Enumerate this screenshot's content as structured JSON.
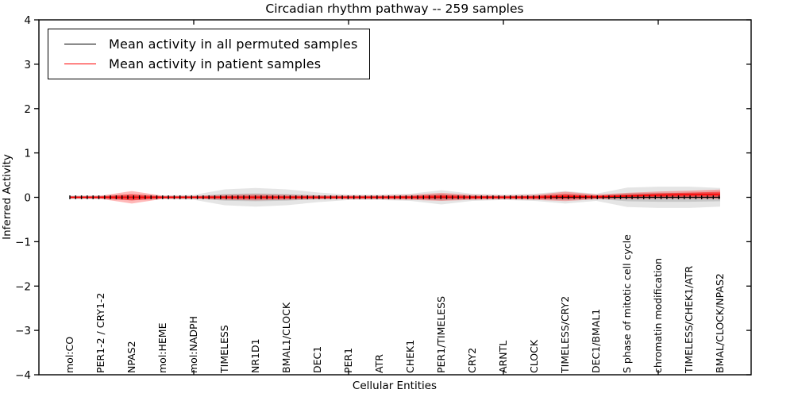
{
  "title": "Circadian rhythm pathway -- 259 samples",
  "chart_data": {
    "type": "area",
    "title": "Circadian rhythm pathway -- 259 samples",
    "xlabel": "Cellular Entities",
    "ylabel": "Inferred Activity",
    "ylim": [
      -4,
      4
    ],
    "xlim": [
      0,
      23
    ],
    "grid": false,
    "ytick_labels_top_to_bottom": [
      "4",
      "3",
      "2",
      "1",
      "0",
      "−1",
      "−2",
      "−3",
      "−4"
    ],
    "ytick_values_top_to_bottom": [
      4,
      3,
      2,
      1,
      0,
      -1,
      -2,
      -3,
      -4
    ],
    "xticks_major_positions": [
      5,
      10,
      15,
      20
    ],
    "legend_position": "upper left",
    "legend": [
      {
        "label": "Mean activity in all permuted samples",
        "color": "#000000"
      },
      {
        "label": "Mean activity in patient samples",
        "color": "#ff0000"
      }
    ],
    "categories": [
      "mol:CO",
      "PER1-2 / CRY1-2",
      "NPAS2",
      "mol:HEME",
      "mol:NADPH",
      "TIMELESS",
      "NR1D1",
      "BMAL1/CLOCK",
      "DEC1",
      "PER1",
      "ATR",
      "CHEK1",
      "PER1/TIMELESS",
      "CRY2",
      "ARNTL",
      "CLOCK",
      "TIMELESS/CRY2",
      "DEC1/BMAL1",
      "S phase of mitotic cell cycle",
      "chromatin modification",
      "TIMELESS/CHEK1/ATR",
      "BMAL/CLOCK/NPAS2"
    ],
    "series": [
      {
        "name": "Mean activity in all permuted samples",
        "color": "#000000",
        "values": [
          0,
          0,
          0,
          0,
          0,
          0,
          0,
          0,
          0,
          0,
          0,
          0,
          0,
          0,
          0,
          0,
          0,
          0,
          0,
          0,
          0,
          0
        ]
      },
      {
        "name": "Mean activity in patient samples",
        "color": "#ff0000",
        "values": [
          0,
          0,
          0,
          0,
          0,
          0,
          0,
          0,
          0,
          0,
          0,
          0,
          0.01,
          0,
          0,
          0,
          0.02,
          0.01,
          0.03,
          0.05,
          0.06,
          0.07
        ]
      }
    ],
    "bands": [
      {
        "name": "permuted-spread-outer",
        "center_series": 0,
        "fill": "rgba(0,0,0,0.10)",
        "half_widths": [
          0.04,
          0.045,
          0.07,
          0.045,
          0.055,
          0.18,
          0.21,
          0.18,
          0.11,
          0.06,
          0.06,
          0.08,
          0.16,
          0.08,
          0.06,
          0.08,
          0.14,
          0.08,
          0.22,
          0.24,
          0.24,
          0.21
        ]
      },
      {
        "name": "permuted-spread-inner",
        "center_series": 0,
        "fill": "rgba(0,0,0,0.13)",
        "half_widths": [
          0.02,
          0.02,
          0.03,
          0.02,
          0.025,
          0.075,
          0.09,
          0.075,
          0.045,
          0.025,
          0.025,
          0.035,
          0.07,
          0.035,
          0.025,
          0.035,
          0.06,
          0.035,
          0.09,
          0.1,
          0.1,
          0.09
        ]
      },
      {
        "name": "patient-spread-outer",
        "center_series": 1,
        "fill": "rgba(255,0,0,0.28)",
        "half_widths": [
          0.03,
          0.035,
          0.14,
          0.035,
          0.035,
          0.055,
          0.07,
          0.055,
          0.045,
          0.045,
          0.045,
          0.055,
          0.09,
          0.055,
          0.045,
          0.055,
          0.105,
          0.055,
          0.07,
          0.08,
          0.09,
          0.105
        ]
      },
      {
        "name": "patient-spread-inner",
        "center_series": 1,
        "fill": "rgba(255,0,0,0.50)",
        "half_widths": [
          0.015,
          0.02,
          0.07,
          0.02,
          0.02,
          0.03,
          0.035,
          0.03,
          0.022,
          0.022,
          0.022,
          0.03,
          0.045,
          0.03,
          0.022,
          0.03,
          0.055,
          0.03,
          0.035,
          0.04,
          0.045,
          0.055
        ]
      }
    ]
  }
}
